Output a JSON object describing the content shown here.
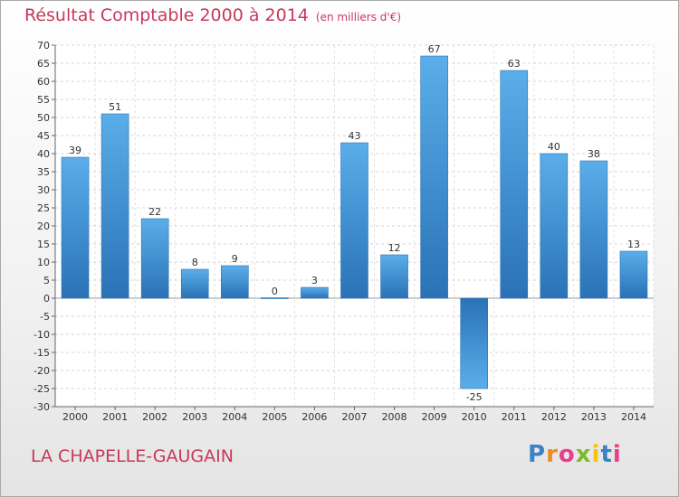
{
  "header": {
    "title": "Résultat Comptable 2000 à 2014",
    "unit": "(en milliers d'€)"
  },
  "footer": {
    "commune": "LA CHAPELLE-GAUGAIN",
    "logo_letters": [
      "P",
      "r",
      "o",
      "x",
      "i",
      "t",
      "i"
    ],
    "logo_colors": [
      "#3b82c4",
      "#f08a24",
      "#e83e8c",
      "#7dbb2a",
      "#f4c20d",
      "#3b82c4",
      "#e83e8c"
    ]
  },
  "chart_data": {
    "type": "bar",
    "categories": [
      "2000",
      "2001",
      "2002",
      "2003",
      "2004",
      "2005",
      "2006",
      "2007",
      "2008",
      "2009",
      "2010",
      "2011",
      "2012",
      "2013",
      "2014"
    ],
    "values": [
      39,
      51,
      22,
      8,
      9,
      0,
      3,
      43,
      12,
      67,
      -25,
      63,
      40,
      38,
      13
    ],
    "title": "Résultat Comptable 2000 à 2014",
    "subtitle": "(en milliers d'€)",
    "xlabel": "",
    "ylabel": "",
    "ylim": [
      -30,
      70
    ],
    "ytick_step": 5,
    "grid": true,
    "legend": "none",
    "bar_color": "#4a9fe0",
    "bar_color_dark": "#2a72b5"
  }
}
